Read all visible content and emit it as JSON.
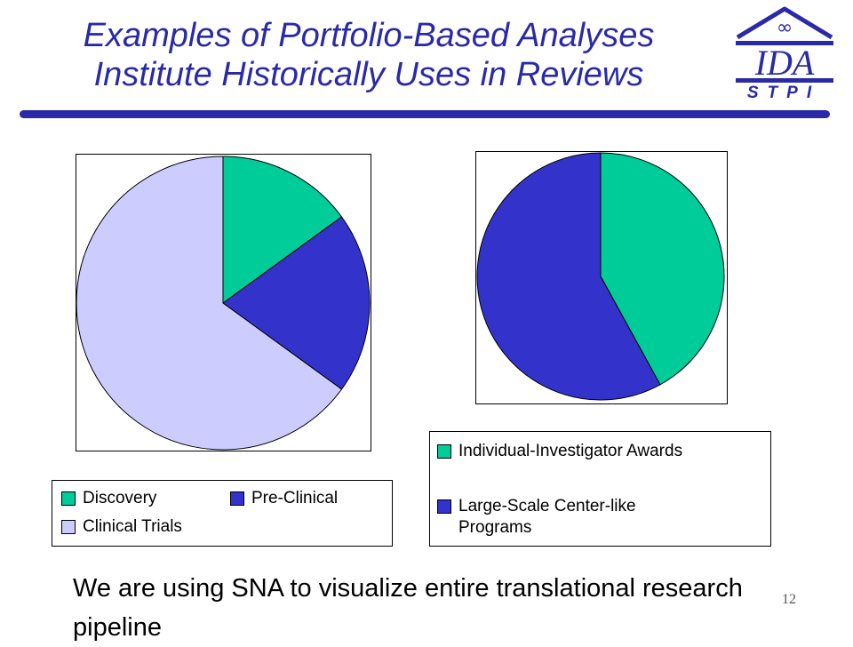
{
  "slide": {
    "title_line1": "Examples of Portfolio-Based Analyses",
    "title_line2": "Institute Historically Uses in Reviews",
    "logo_main": "IDA",
    "logo_sub": "STPI",
    "body_text": "We are using SNA to visualize entire translational research pipeline",
    "page_number": "12"
  },
  "colors": {
    "title": "#2a2aa8",
    "discovery": "#00cc99",
    "pre_clinical": "#3333cc",
    "clinical_trials": "#ccccff",
    "individual": "#00cc99",
    "large_scale": "#3333cc"
  },
  "chart_data": [
    {
      "type": "pie",
      "legend": [
        "Discovery",
        "Pre-Clinical",
        "Clinical Trials"
      ],
      "values": [
        15,
        20,
        65
      ],
      "colors": [
        "#00cc99",
        "#3333cc",
        "#ccccff"
      ],
      "legend_placement": "bottom"
    },
    {
      "type": "pie",
      "legend": [
        "Individual-Investigator Awards",
        "Large-Scale Center-like Programs"
      ],
      "values": [
        42,
        58
      ],
      "colors": [
        "#00cc99",
        "#3333cc"
      ],
      "legend_placement": "bottom"
    }
  ]
}
